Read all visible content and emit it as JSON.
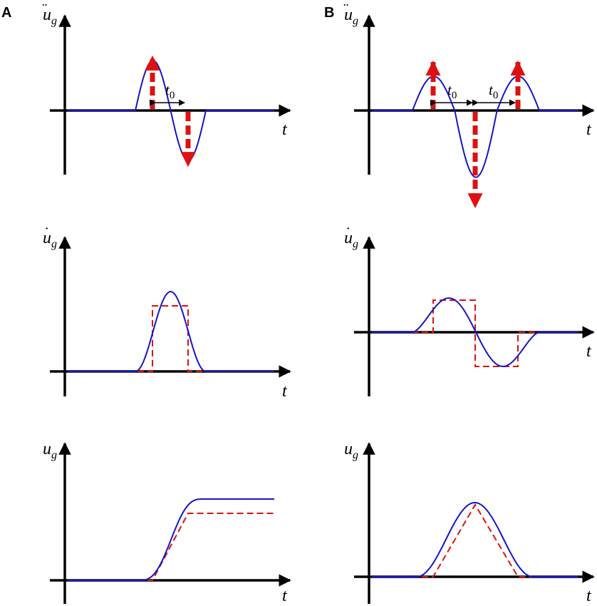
{
  "panels": {
    "a_letter": "A",
    "b_letter": "B"
  },
  "labels": {
    "accel_main": "u",
    "accel_sub": "g",
    "accel_marks": "¨",
    "vel_main": "u",
    "vel_sub": "g",
    "vel_marks": "˙",
    "disp_main": "u",
    "disp_sub": "g",
    "time": "t",
    "pulse_main": "t",
    "pulse_sub": "0"
  },
  "colors": {
    "axis": "#000000",
    "actual_curve": "#1515cc",
    "idealized_curve": "#dd1111"
  }
}
